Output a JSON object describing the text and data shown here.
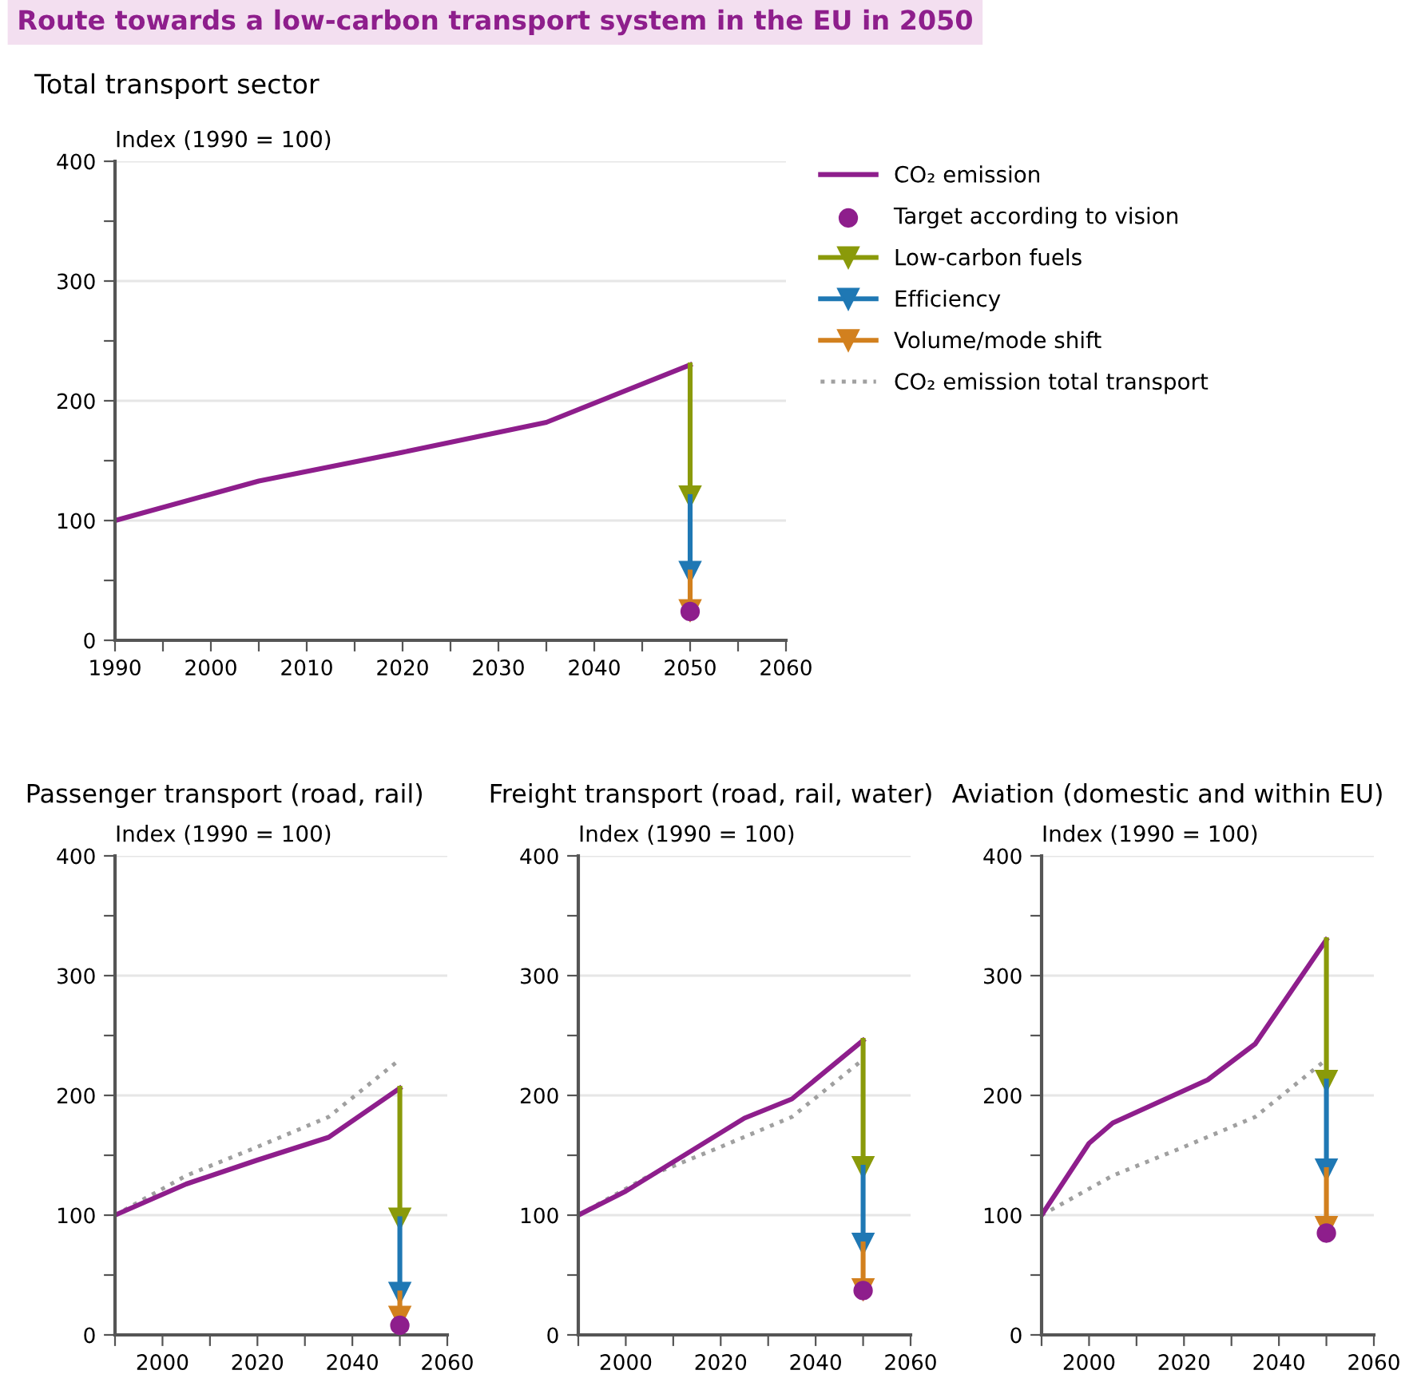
{
  "chart_data": [
    {
      "type": "line",
      "title": "Route towards a low-carbon transport system in the EU in 2050",
      "subtitle": "Total transport sector",
      "ylabel": "Index (1990 = 100)",
      "xlim": [
        1990,
        2060
      ],
      "xticks": [
        1990,
        {
          "value": 1995,
          "label": null
        },
        2000,
        {
          "value": 2005,
          "label": null
        },
        2010,
        {
          "value": 2015,
          "label": null
        },
        2020,
        {
          "value": 2025,
          "label": null
        },
        2030,
        {
          "value": 2035,
          "label": null
        },
        2040,
        {
          "value": 2045,
          "label": null
        },
        2050,
        {
          "value": 2055,
          "label": null
        },
        2060
      ],
      "ylim": [
        0,
        400
      ],
      "yticks": [
        0,
        {
          "value": 50,
          "label": null
        },
        100,
        {
          "value": 150,
          "label": null
        },
        200,
        {
          "value": 250,
          "label": null
        },
        300,
        {
          "value": 350,
          "label": null
        },
        400
      ],
      "grid": "y",
      "legend": "right",
      "series": [
        {
          "name": "CO₂ emission",
          "color": "#8e1e8c",
          "x": [
            1990,
            2005,
            2020,
            2035,
            2050
          ],
          "values": [
            100,
            133,
            157,
            182,
            230
          ]
        },
        {
          "name": "Target according to vision",
          "type": "scatter",
          "marker": "circle",
          "color": "#8e1e8c",
          "x": [
            2050
          ],
          "values": [
            24
          ]
        },
        {
          "name": "Low-carbon fuels",
          "marker": "triangle",
          "color": "#8a9a0a",
          "x": [
            2050,
            2050
          ],
          "values": [
            230,
            120
          ]
        },
        {
          "name": "Efficiency",
          "marker": "triangle",
          "color": "#1f78b4",
          "x": [
            2050,
            2050
          ],
          "values": [
            120,
            57
          ]
        },
        {
          "name": "Volume/mode shift",
          "marker": "triangle",
          "color": "#d2801e",
          "x": [
            2050,
            2050
          ],
          "values": [
            57,
            25
          ]
        },
        {
          "name": "CO₂ emission total transport",
          "line_style": "dotted",
          "color": "#a0a0a0"
        }
      ]
    },
    {
      "type": "line",
      "title": "Passenger transport (road, rail)",
      "ylabel": "Index (1990 = 100)",
      "xlim": [
        1990,
        2060
      ],
      "xticks": [
        {
          "value": 1990,
          "label": null
        },
        2000,
        {
          "value": 2010,
          "label": null
        },
        2020,
        {
          "value": 2030,
          "label": null
        },
        2040,
        {
          "value": 2050,
          "label": null
        },
        2060
      ],
      "ylim": [
        0,
        400
      ],
      "yticks": [
        0,
        {
          "value": 50,
          "label": null
        },
        100,
        {
          "value": 150,
          "label": null
        },
        200,
        {
          "value": 250,
          "label": null
        },
        300,
        {
          "value": 350,
          "label": null
        },
        400
      ],
      "grid": "y",
      "series": [
        {
          "line_style": "dotted",
          "color": "#a0a0a0",
          "x": [
            1990,
            2005,
            2020,
            2035,
            2050
          ],
          "values": [
            100,
            133,
            157,
            182,
            230
          ]
        },
        {
          "color": "#8e1e8c",
          "x": [
            1990,
            2005,
            2020,
            2035,
            2050
          ],
          "values": [
            100,
            126,
            146,
            165,
            206
          ]
        },
        {
          "type": "scatter",
          "marker": "circle",
          "color": "#8e1e8c",
          "x": [
            2050
          ],
          "values": [
            8
          ]
        },
        {
          "marker": "triangle",
          "color": "#8a9a0a",
          "x": [
            2050,
            2050
          ],
          "values": [
            206,
            97
          ]
        },
        {
          "marker": "triangle",
          "color": "#1f78b4",
          "x": [
            2050,
            2050
          ],
          "values": [
            97,
            35
          ]
        },
        {
          "marker": "triangle",
          "color": "#d2801e",
          "x": [
            2050,
            2050
          ],
          "values": [
            35,
            15
          ]
        }
      ]
    },
    {
      "type": "line",
      "title": "Freight transport (road, rail, water)",
      "ylabel": "Index (1990 = 100)",
      "xlim": [
        1990,
        2060
      ],
      "xticks": [
        {
          "value": 1990,
          "label": null
        },
        2000,
        {
          "value": 2010,
          "label": null
        },
        2020,
        {
          "value": 2030,
          "label": null
        },
        2040,
        {
          "value": 2050,
          "label": null
        },
        2060
      ],
      "ylim": [
        0,
        400
      ],
      "yticks": [
        0,
        {
          "value": 50,
          "label": null
        },
        100,
        {
          "value": 150,
          "label": null
        },
        200,
        {
          "value": 250,
          "label": null
        },
        300,
        {
          "value": 350,
          "label": null
        },
        400
      ],
      "grid": "y",
      "series": [
        {
          "line_style": "dotted",
          "color": "#a0a0a0",
          "x": [
            1990,
            2005,
            2020,
            2035,
            2050
          ],
          "values": [
            100,
            133,
            157,
            182,
            230
          ]
        },
        {
          "color": "#8e1e8c",
          "x": [
            1990,
            2000,
            2025,
            2035,
            2050
          ],
          "values": [
            100,
            120,
            181,
            197,
            246
          ]
        },
        {
          "type": "scatter",
          "marker": "circle",
          "color": "#8e1e8c",
          "x": [
            2050
          ],
          "values": [
            37
          ]
        },
        {
          "marker": "triangle",
          "color": "#8a9a0a",
          "x": [
            2050,
            2050
          ],
          "values": [
            246,
            140
          ]
        },
        {
          "marker": "triangle",
          "color": "#1f78b4",
          "x": [
            2050,
            2050
          ],
          "values": [
            140,
            76
          ]
        },
        {
          "marker": "triangle",
          "color": "#d2801e",
          "x": [
            2050,
            2050
          ],
          "values": [
            76,
            38
          ]
        }
      ]
    },
    {
      "type": "line",
      "title": "Aviation (domestic and within EU)",
      "ylabel": "Index (1990 = 100)",
      "xlim": [
        1990,
        2060
      ],
      "xticks": [
        {
          "value": 1990,
          "label": null
        },
        2000,
        {
          "value": 2010,
          "label": null
        },
        2020,
        {
          "value": 2030,
          "label": null
        },
        2040,
        {
          "value": 2050,
          "label": null
        },
        2060
      ],
      "ylim": [
        0,
        400
      ],
      "yticks": [
        0,
        {
          "value": 50,
          "label": null
        },
        100,
        {
          "value": 150,
          "label": null
        },
        200,
        {
          "value": 250,
          "label": null
        },
        300,
        {
          "value": 350,
          "label": null
        },
        400
      ],
      "grid": "y",
      "series": [
        {
          "line_style": "dotted",
          "color": "#a0a0a0",
          "x": [
            1990,
            2005,
            2020,
            2035,
            2050
          ],
          "values": [
            100,
            133,
            157,
            182,
            230
          ]
        },
        {
          "color": "#8e1e8c",
          "x": [
            1990,
            2000,
            2005,
            2025,
            2035,
            2050
          ],
          "values": [
            100,
            160,
            177,
            213,
            243,
            330
          ]
        },
        {
          "type": "scatter",
          "marker": "circle",
          "color": "#8e1e8c",
          "x": [
            2050
          ],
          "values": [
            85
          ]
        },
        {
          "marker": "triangle",
          "color": "#8a9a0a",
          "x": [
            2050,
            2050
          ],
          "values": [
            330,
            212
          ]
        },
        {
          "marker": "triangle",
          "color": "#1f78b4",
          "x": [
            2050,
            2050
          ],
          "values": [
            212,
            138
          ]
        },
        {
          "marker": "triangle",
          "color": "#d2801e",
          "x": [
            2050,
            2050
          ],
          "values": [
            138,
            90
          ]
        }
      ]
    }
  ]
}
